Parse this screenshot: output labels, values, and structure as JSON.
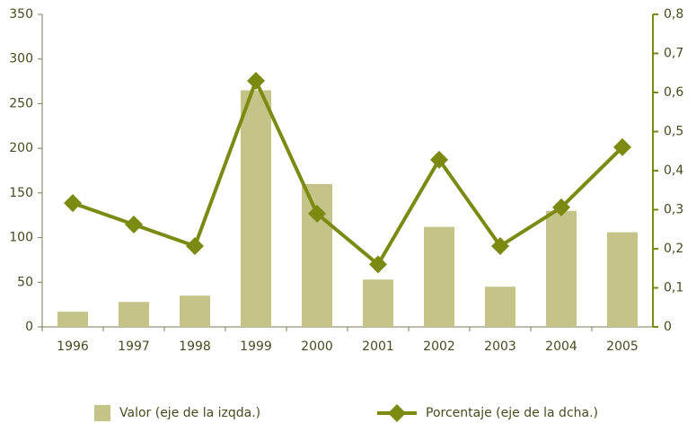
{
  "chart_data": {
    "type": "bar_line",
    "categories": [
      "1996",
      "1997",
      "1998",
      "1999",
      "2000",
      "2001",
      "2002",
      "2003",
      "2004",
      "2005"
    ],
    "series": [
      {
        "name": "Valor (eje de la izqda.)",
        "type": "bar",
        "color": "#c4c388",
        "values": [
          17,
          28,
          35,
          265,
          160,
          53,
          112,
          45,
          130,
          106
        ]
      },
      {
        "name": "Porcentaje (eje de la dcha.)",
        "type": "line",
        "axis": "y2",
        "color": "#7d8a12",
        "values": [
          0.317,
          0.262,
          0.207,
          0.63,
          0.29,
          0.16,
          0.428,
          0.207,
          0.306,
          0.46
        ]
      }
    ],
    "ylim": [
      0,
      350
    ],
    "yticks": [
      0,
      50,
      100,
      150,
      200,
      250,
      300,
      350
    ],
    "y2lim": [
      0,
      0.8
    ],
    "y2ticks": [
      0,
      {
        "value": 0.1,
        "label": "0,1"
      },
      {
        "value": 0.2,
        "label": "0,2"
      },
      {
        "value": 0.3,
        "label": "0,3"
      },
      {
        "value": 0.4,
        "label": "0,4"
      },
      {
        "value": 0.5,
        "label": "0,5"
      },
      {
        "value": 0.6,
        "label": "0,6"
      },
      {
        "value": 0.7,
        "label": "0,7"
      },
      {
        "value": 0.8,
        "label": "0,8"
      }
    ],
    "legend": "bottom",
    "grid": false
  }
}
